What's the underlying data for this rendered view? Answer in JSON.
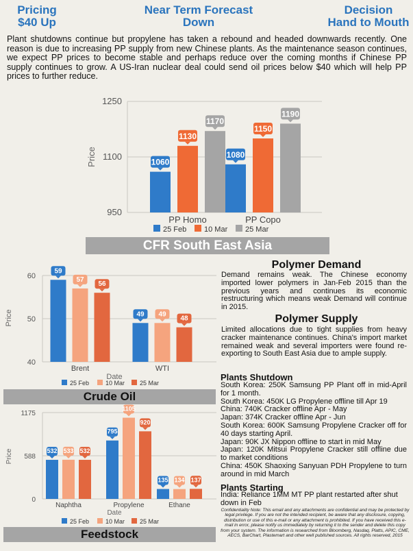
{
  "header": {
    "pricing": [
      "Pricing",
      "$40 Up"
    ],
    "forecast": [
      "Near Term Forecast",
      "Down"
    ],
    "decision": [
      "Decision",
      "Hand to Mouth"
    ]
  },
  "intro": "Plant shutdowns continue but propylene has taken a rebound and headed downwards recently. One reason is due to increasing PP supply from new Chinese plants. As the maintenance season continues, we expect PP prices to become stable and perhaps reduce over the coming months if Chinese PP supply continues to grow. A US-Iran nuclear deal could send oil prices below $40 which will help PP prices to further reduce.",
  "colors": {
    "s1": "#2f7bc9",
    "s2": "#ef6a35",
    "s3": "#a5a5a5",
    "s2_light": "#f5a47e",
    "s2_dark": "#e2673f"
  },
  "chart_data": [
    {
      "type": "bar",
      "title": "CFR South East Asia",
      "ylabel": "Price",
      "categories": [
        "PP Homo",
        "PP Copo"
      ],
      "series": [
        {
          "name": "25 Feb",
          "values": [
            1060,
            1080
          ]
        },
        {
          "name": "10 Mar",
          "values": [
            1130,
            1150
          ]
        },
        {
          "name": "25 Mar",
          "values": [
            1170,
            1190
          ]
        }
      ],
      "ylim": [
        950,
        1250
      ],
      "yticks": [
        950,
        1100,
        1250
      ],
      "legend_position": "bottom",
      "grid": true
    },
    {
      "type": "bar",
      "title": "Crude Oil",
      "xlabel": "Date",
      "ylabel": "Price",
      "categories": [
        "Brent",
        "WTI"
      ],
      "series": [
        {
          "name": "25 Feb",
          "values": [
            59,
            49
          ]
        },
        {
          "name": "10 Mar",
          "values": [
            57,
            49
          ]
        },
        {
          "name": "25 Mar",
          "values": [
            56,
            48
          ]
        }
      ],
      "ylim": [
        40,
        60
      ],
      "yticks": [
        40,
        50,
        60
      ],
      "legend_position": "bottom",
      "grid": true
    },
    {
      "type": "bar",
      "title": "Feedstock",
      "xlabel": "Date",
      "ylabel": "Price",
      "categories": [
        "Naphtha",
        "Propylene",
        "Ethane"
      ],
      "series": [
        {
          "name": "25 Feb",
          "values": [
            532,
            795,
            135
          ]
        },
        {
          "name": "10 Mar",
          "values": [
            533,
            1105,
            134
          ]
        },
        {
          "name": "25 Mar",
          "values": [
            532,
            920,
            137
          ]
        }
      ],
      "ylim": [
        0,
        1175
      ],
      "yticks": [
        0,
        588,
        1175
      ],
      "legend_position": "bottom",
      "grid": true
    }
  ],
  "demand": {
    "title": "Polymer Demand",
    "text": "Demand remains weak. The Chinese economy imported lower polymers in Jan-Feb 2015 than the previous years and continues its economic restructuring which means weak Demand will continue in 2015."
  },
  "supply": {
    "title": "Polymer Supply",
    "text": "Limited allocations due to tight supplies from heavy cracker maintenance continues. China's import market remained weak and several importers were found re-exporting to South East Asia due to ample supply."
  },
  "shutdown": {
    "title": "Plants Shutdown",
    "items": [
      "South Korea: 250K Samsung PP Plant off in mid-April for 1 month.",
      "South Korea: 450K LG Propylene offline till Apr 19",
      "China: 740K Cracker offline Apr - May",
      "Japan: 374K Cracker offline Apr - Jun",
      "South Korea: 600K Samsung Propylene Cracker off for 40 days starting April.",
      "Japan: 90K JX Nippon offline to start in mid May",
      "Japan: 120K Mitsui Propylene Cracker still offline due to market conditions",
      "China: 450K Shaoxing Sanyuan PDH Propylene to turn around in mid March"
    ]
  },
  "starting": {
    "title": "Plants Starting",
    "items": [
      "India: Reliance 1MM MT PP plant restarted after shut down in Feb"
    ]
  },
  "confidentiality": "Confidentiality Note: This email and any attachments are confidential and may be protected by legal privilege. If you are not the intended recipient, be aware that any disclosure, copying, distribution or use of this e-mail or any attachment is prohibited. If you have received this e-mail in error, please notify us immediately by returning it to the sender and delete this copy from your system. The information is researched from Bloomberg, Nasdaq, Platts, APIC, CME, AECS, BarChart, Plastemart and other well published sources. All rights reserved, 2015"
}
